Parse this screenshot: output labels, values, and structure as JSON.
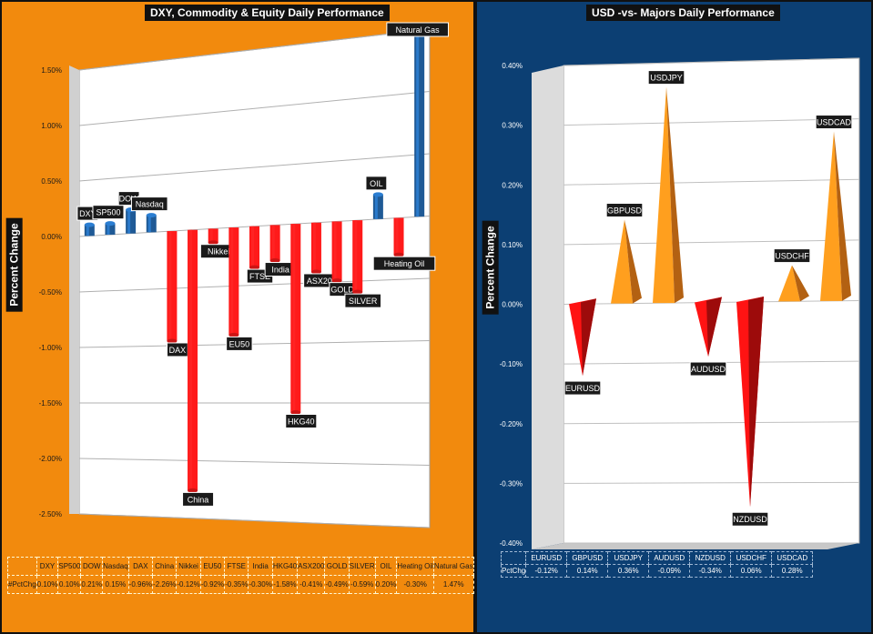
{
  "charts_meta": {
    "left_ylabel": "Percent Change",
    "right_ylabel": "Percent Change",
    "left_series_label": "#PctChg",
    "right_series_label": "PctChg"
  },
  "colors": {
    "left_bg": "#f28a0d",
    "right_bg": "#0c3f73",
    "positive_left": "#1f5a96",
    "negative_left": "#ff1a1a",
    "positive_right": "#ff8a1a",
    "negative_right": "#e01010"
  },
  "chart_data": [
    {
      "type": "bar",
      "title": "DXY, Commodity  & Equity Daily Performance",
      "ylabel": "Percent Change",
      "ylim": [
        -2.5,
        1.5
      ],
      "yticks": [
        "1.50%",
        "1.00%",
        "0.50%",
        "0.00%",
        "-0.50%",
        "-1.00%",
        "-1.50%",
        "-2.00%",
        "-2.50%"
      ],
      "grid": true,
      "categories": [
        "DXY",
        "SP500",
        "DOW",
        "Nasdaq",
        "DAX",
        "China",
        "Nikkei",
        "EU50",
        "FTSE",
        "India",
        "HKG40",
        "ASX200",
        "GOLD",
        "SILVER",
        "OIL",
        "Heating Oil",
        "Natural Gas"
      ],
      "values": [
        0.1,
        0.1,
        0.21,
        0.15,
        -0.96,
        -2.26,
        -0.12,
        -0.92,
        -0.35,
        -0.3,
        -1.58,
        -0.41,
        -0.49,
        -0.59,
        0.2,
        -0.3,
        1.47
      ],
      "table_values": [
        "0.10%",
        "0.10%",
        "0.21%",
        "0.15%",
        "-0.96%",
        "-2.26%",
        "-0.12%",
        "-0.92%",
        "-0.35%",
        "-0.30%",
        "-1.58%",
        "-0.41%",
        "-0.49%",
        "-0.59%",
        "0.20%",
        "-0.30%",
        "1.47%"
      ]
    },
    {
      "type": "bar",
      "title": "USD -vs- Majors Daily Performance",
      "ylabel": "Percent Change",
      "ylim": [
        -0.4,
        0.4
      ],
      "yticks": [
        "0.40%",
        "0.30%",
        "0.20%",
        "0.10%",
        "0.00%",
        "-0.10%",
        "-0.20%",
        "-0.30%",
        "-0.40%"
      ],
      "grid": true,
      "categories": [
        "EURUSD",
        "GBPUSD",
        "USDJPY",
        "AUDUSD",
        "NZDUSD",
        "USDCHF",
        "USDCAD"
      ],
      "values": [
        -0.12,
        0.14,
        0.36,
        -0.09,
        -0.34,
        0.06,
        0.28
      ],
      "table_values": [
        "-0.12%",
        "0.14%",
        "0.36%",
        "-0.09%",
        "-0.34%",
        "0.06%",
        "0.28%"
      ]
    }
  ]
}
